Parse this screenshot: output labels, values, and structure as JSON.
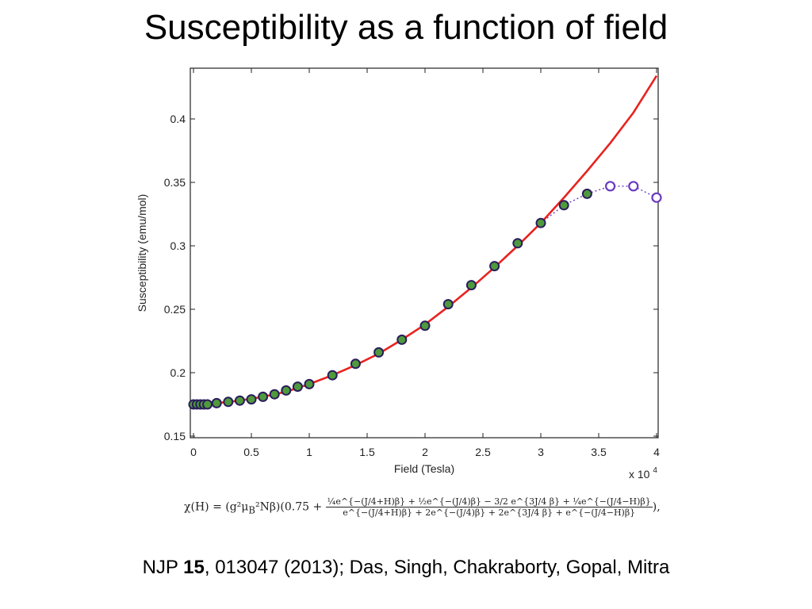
{
  "slide": {
    "title": "Susceptibility as a function of field",
    "formula": {
      "lhs": "χ(H) = (g²μ",
      "sub_b": "B",
      "mid": "²Nβ)(0.75 +",
      "numerator": "¼e^{−(J/4+H)β} + ½e^{−(J/4)β} − 3/2 e^{3J/4 β} + ¼e^{−(J/4−H)β}",
      "denominator": "e^{−(J/4+H)β} + 2e^{−(J/4)β} + 2e^{3J/4 β} + e^{−(J/4−H)β}",
      "tail": "),"
    },
    "citation": {
      "prefix": "NJP ",
      "volume": "15",
      "suffix": ", 013047 (2013); Das, Singh, Chakraborty, Gopal, Mitra"
    }
  },
  "chart_data": {
    "type": "scatter",
    "xlabel": "Field (Tesla)",
    "ylabel": "Susceptibility (emu/mol)",
    "x_multiplier_label": "x 10",
    "x_multiplier_exp": "4",
    "xlim": [
      0,
      4
    ],
    "ylim": [
      0.15,
      0.44
    ],
    "xticks": [
      "0",
      "0.5",
      "1",
      "1.5",
      "2",
      "2.5",
      "3",
      "3.5",
      "4"
    ],
    "yticks": [
      "0.15",
      "0.2",
      "0.25",
      "0.3",
      "0.35",
      "0.4"
    ],
    "grid": false,
    "series": [
      {
        "kind": "filled-markers",
        "color": "#4f9a3c",
        "edge": "#2a1d5c",
        "points": [
          [
            0.0,
            0.175
          ],
          [
            0.03,
            0.175
          ],
          [
            0.06,
            0.175
          ],
          [
            0.09,
            0.175
          ],
          [
            0.12,
            0.175
          ],
          [
            0.2,
            0.176
          ],
          [
            0.3,
            0.177
          ],
          [
            0.4,
            0.178
          ],
          [
            0.5,
            0.179
          ],
          [
            0.6,
            0.181
          ],
          [
            0.7,
            0.183
          ],
          [
            0.8,
            0.186
          ],
          [
            0.9,
            0.189
          ],
          [
            1.0,
            0.191
          ],
          [
            1.2,
            0.198
          ],
          [
            1.4,
            0.207
          ],
          [
            1.6,
            0.216
          ],
          [
            1.8,
            0.226
          ],
          [
            2.0,
            0.237
          ],
          [
            2.2,
            0.254
          ],
          [
            2.4,
            0.269
          ],
          [
            2.6,
            0.284
          ],
          [
            2.8,
            0.302
          ],
          [
            3.0,
            0.318
          ],
          [
            3.2,
            0.332
          ],
          [
            3.4,
            0.341
          ]
        ]
      },
      {
        "kind": "open-markers",
        "color": "#6a3bbf",
        "points": [
          [
            3.6,
            0.347
          ],
          [
            3.8,
            0.347
          ],
          [
            4.0,
            0.338
          ]
        ]
      },
      {
        "kind": "dotted-line",
        "color": "#6a3bbf",
        "points": [
          [
            3.0,
            0.318
          ],
          [
            3.2,
            0.332
          ],
          [
            3.4,
            0.341
          ],
          [
            3.6,
            0.347
          ],
          [
            3.8,
            0.347
          ],
          [
            4.0,
            0.338
          ]
        ]
      },
      {
        "kind": "fit-curve",
        "color": "#e8231f",
        "points": [
          [
            0.0,
            0.175
          ],
          [
            0.2,
            0.176
          ],
          [
            0.4,
            0.178
          ],
          [
            0.6,
            0.181
          ],
          [
            0.8,
            0.185
          ],
          [
            1.0,
            0.191
          ],
          [
            1.2,
            0.198
          ],
          [
            1.4,
            0.206
          ],
          [
            1.6,
            0.215
          ],
          [
            1.8,
            0.226
          ],
          [
            2.0,
            0.238
          ],
          [
            2.2,
            0.252
          ],
          [
            2.4,
            0.267
          ],
          [
            2.6,
            0.283
          ],
          [
            2.8,
            0.3
          ],
          [
            3.0,
            0.318
          ],
          [
            3.2,
            0.338
          ],
          [
            3.4,
            0.359
          ],
          [
            3.6,
            0.381
          ],
          [
            3.8,
            0.405
          ],
          [
            4.0,
            0.434
          ]
        ]
      }
    ]
  }
}
